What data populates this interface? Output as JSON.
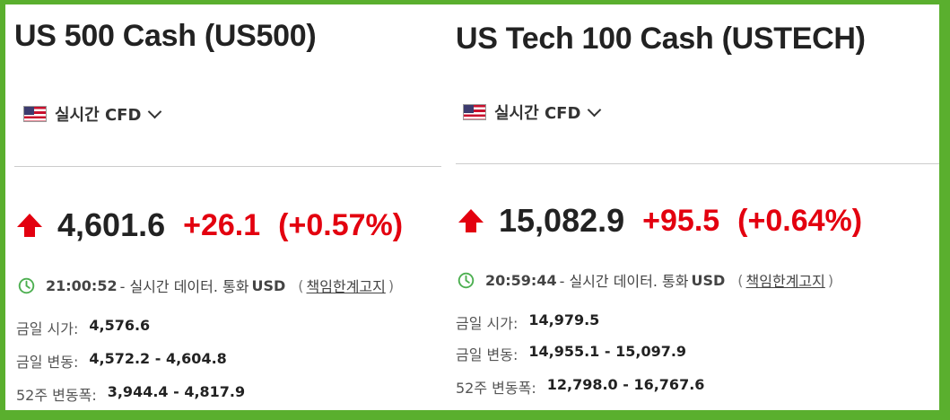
{
  "left": {
    "title": "US 500 Cash (US500)",
    "market_label": "실시간 CFD",
    "price": "4,601.6",
    "change": "+26.1",
    "change_pct": "(+0.57%)",
    "time": "21:00:52",
    "time_suffix": "- 실시간 데이터.  통화",
    "currency": "USD",
    "disclaimer": "책임한계고지",
    "open_label": "금일 시가:",
    "open_value": "4,576.6",
    "day_range_label": "금일 변동:",
    "day_range_value": "4,572.2 - 4,604.8",
    "week52_label": "52주 변동폭:",
    "week52_value": "3,944.4 - 4,817.9"
  },
  "right": {
    "title": "US Tech 100 Cash (USTECH)",
    "market_label": "실시간 CFD",
    "price": "15,082.9",
    "change": "+95.5",
    "change_pct": "(+0.64%)",
    "time": "20:59:44",
    "time_suffix": "- 실시간 데이터.  통화",
    "currency": "USD",
    "disclaimer": "책임한계고지",
    "open_label": "금일 시가:",
    "open_value": "14,979.5",
    "day_range_label": "금일 변동:",
    "day_range_value": "14,955.1 - 15,097.9",
    "week52_label": "52주 변동폭:",
    "week52_value": "12,798.0 - 16,767.6"
  },
  "colors": {
    "up": "#e3000f",
    "clock": "#4caf50",
    "frame": "#5aaf2e"
  },
  "icons": [
    "us-flag-icon",
    "chevron-down-icon",
    "up-arrow-icon",
    "clock-icon"
  ]
}
